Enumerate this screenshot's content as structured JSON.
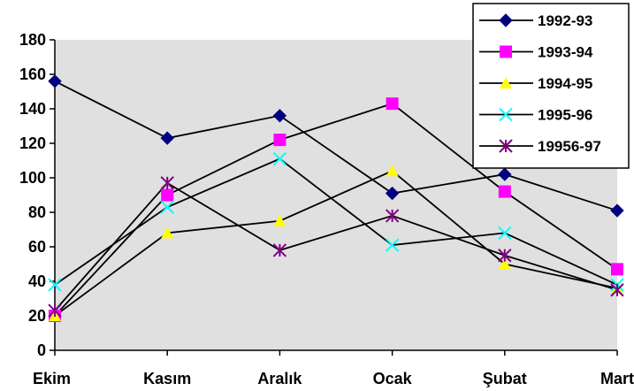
{
  "chart_data": {
    "type": "line",
    "title": "",
    "xlabel": "",
    "ylabel": "",
    "categories": [
      "Ekim",
      "Kasım",
      "Aralık",
      "Ocak",
      "Şubat",
      "Mart"
    ],
    "ylim": [
      0,
      180
    ],
    "yticks": [
      0,
      20,
      40,
      60,
      80,
      100,
      120,
      140,
      160,
      180
    ],
    "grid": false,
    "legend_position": "top-right",
    "plot_background": "#e0e0e0",
    "series": [
      {
        "name": "1992-93",
        "values": [
          156,
          123,
          136,
          91,
          102,
          81
        ],
        "color": "#000080",
        "marker": "diamond"
      },
      {
        "name": "1993-94",
        "values": [
          20,
          90,
          122,
          143,
          92,
          47
        ],
        "color": "#ff00ff",
        "marker": "square"
      },
      {
        "name": "1994-95",
        "values": [
          20,
          68,
          75,
          104,
          50,
          36
        ],
        "color": "#ffff00",
        "marker": "triangle"
      },
      {
        "name": "1995-96",
        "values": [
          38,
          83,
          111,
          61,
          68,
          38
        ],
        "color": "#00ffff",
        "marker": "x"
      },
      {
        "name": "19956-97",
        "values": [
          23,
          97,
          58,
          78,
          55,
          35
        ],
        "color": "#800080",
        "marker": "star"
      }
    ]
  }
}
